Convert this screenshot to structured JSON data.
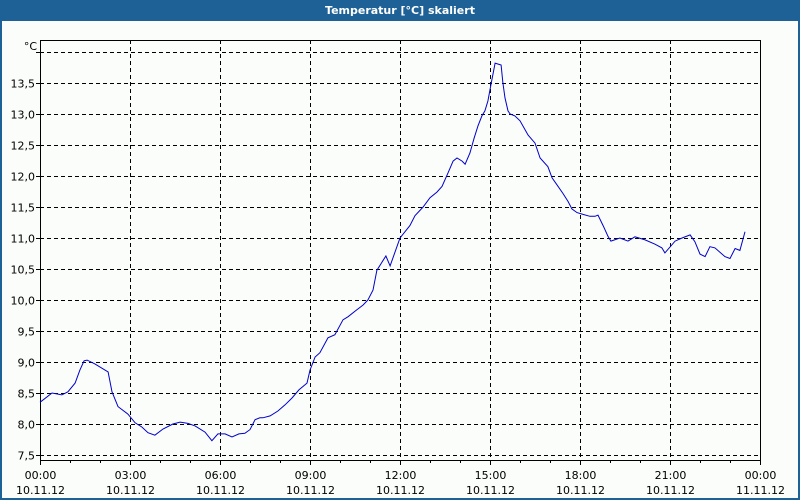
{
  "window": {
    "title": "Temperatur [°C] skaliert",
    "colors": {
      "frame": "#1d6196",
      "background": "#fbfdfa",
      "line": "#0000cc",
      "grid": "#000000"
    }
  },
  "chart_data": {
    "type": "line",
    "title": "Temperatur [°C] skaliert",
    "xlabel": "",
    "ylabel": "°C",
    "unit_label": "°C",
    "xlim_hours": [
      0,
      24
    ],
    "ylim": [
      7.5,
      14.0
    ],
    "grid": true,
    "grid_style": "dashed",
    "legend": null,
    "yticks": [
      {
        "value": 7.5,
        "label": "7,5"
      },
      {
        "value": 8.0,
        "label": "8,0"
      },
      {
        "value": 8.5,
        "label": "8,5"
      },
      {
        "value": 9.0,
        "label": "9,0"
      },
      {
        "value": 9.5,
        "label": "9,5"
      },
      {
        "value": 10.0,
        "label": "10,0"
      },
      {
        "value": 10.5,
        "label": "10,5"
      },
      {
        "value": 11.0,
        "label": "11,0"
      },
      {
        "value": 11.5,
        "label": "11,5"
      },
      {
        "value": 12.0,
        "label": "12,0"
      },
      {
        "value": 12.5,
        "label": "12,5"
      },
      {
        "value": 13.0,
        "label": "13,0"
      },
      {
        "value": 13.5,
        "label": "13,5"
      },
      {
        "value": 14.0,
        "label": ""
      }
    ],
    "xticks": [
      {
        "hour": 0,
        "time": "00:00",
        "date": "10.11.12"
      },
      {
        "hour": 3,
        "time": "03:00",
        "date": "10.11.12"
      },
      {
        "hour": 6,
        "time": "06:00",
        "date": "10.11.12"
      },
      {
        "hour": 9,
        "time": "09:00",
        "date": "10.11.12"
      },
      {
        "hour": 12,
        "time": "12:00",
        "date": "10.11.12"
      },
      {
        "hour": 15,
        "time": "15:00",
        "date": "10.11.12"
      },
      {
        "hour": 18,
        "time": "18:00",
        "date": "10.11.12"
      },
      {
        "hour": 21,
        "time": "21:00",
        "date": "10.11.12"
      },
      {
        "hour": 24,
        "time": "00:00",
        "date": "11.11.12"
      }
    ],
    "minor_tick_hours": 1,
    "series": [
      {
        "name": "Temperatur",
        "color": "#0000cc",
        "x_hours": [
          0.0,
          0.4,
          0.73,
          0.93,
          1.17,
          1.33,
          1.47,
          1.57,
          1.83,
          2.27,
          2.4,
          2.6,
          2.93,
          3.17,
          3.4,
          3.6,
          3.83,
          4.1,
          4.43,
          4.67,
          4.93,
          5.17,
          5.5,
          5.73,
          5.93,
          6.17,
          6.4,
          6.63,
          6.83,
          7.0,
          7.17,
          7.33,
          7.43,
          7.67,
          7.93,
          8.17,
          8.4,
          8.63,
          8.9,
          9.0,
          9.17,
          9.33,
          9.6,
          9.83,
          10.1,
          10.27,
          10.53,
          10.77,
          10.93,
          11.1,
          11.23,
          11.53,
          11.67,
          12.0,
          12.33,
          12.5,
          12.77,
          13.0,
          13.23,
          13.4,
          13.6,
          13.77,
          13.9,
          14.07,
          14.17,
          14.33,
          14.47,
          14.6,
          14.73,
          14.83,
          14.93,
          15.03,
          15.17,
          15.3,
          15.37,
          15.43,
          15.5,
          15.6,
          15.67,
          15.83,
          16.0,
          16.27,
          16.5,
          16.67,
          16.93,
          17.07,
          17.2,
          17.43,
          17.6,
          17.73,
          17.9,
          18.1,
          18.33,
          18.5,
          18.6,
          18.77,
          18.93,
          19.03,
          19.33,
          19.6,
          19.83,
          20.17,
          20.5,
          20.73,
          20.83,
          21.17,
          21.4,
          21.67,
          21.83,
          22.0,
          22.17,
          22.33,
          22.5,
          22.83,
          23.0,
          23.17,
          23.33,
          23.5
        ],
        "values": [
          8.35,
          8.5,
          8.47,
          8.52,
          8.66,
          8.87,
          9.02,
          9.03,
          8.97,
          8.84,
          8.52,
          8.28,
          8.16,
          8.02,
          7.95,
          7.86,
          7.82,
          7.92,
          8.0,
          8.03,
          8.01,
          7.97,
          7.87,
          7.73,
          7.84,
          7.84,
          7.79,
          7.84,
          7.85,
          7.91,
          8.07,
          8.1,
          8.1,
          8.13,
          8.21,
          8.31,
          8.42,
          8.55,
          8.66,
          8.87,
          9.08,
          9.15,
          9.39,
          9.44,
          9.68,
          9.73,
          9.83,
          9.92,
          10.0,
          10.16,
          10.48,
          10.71,
          10.55,
          11.0,
          11.2,
          11.36,
          11.5,
          11.65,
          11.74,
          11.83,
          12.05,
          12.24,
          12.29,
          12.24,
          12.19,
          12.37,
          12.61,
          12.81,
          12.97,
          13.05,
          13.21,
          13.47,
          13.82,
          13.8,
          13.79,
          13.5,
          13.26,
          13.05,
          13.0,
          12.97,
          12.89,
          12.66,
          12.53,
          12.29,
          12.15,
          11.97,
          11.88,
          11.72,
          11.59,
          11.47,
          11.41,
          11.38,
          11.35,
          11.35,
          11.37,
          11.2,
          11.03,
          10.95,
          11.0,
          10.95,
          11.02,
          10.97,
          10.9,
          10.84,
          10.76,
          10.95,
          11.0,
          11.05,
          10.94,
          10.74,
          10.7,
          10.86,
          10.84,
          10.7,
          10.67,
          10.83,
          10.8,
          11.1
        ]
      }
    ]
  }
}
